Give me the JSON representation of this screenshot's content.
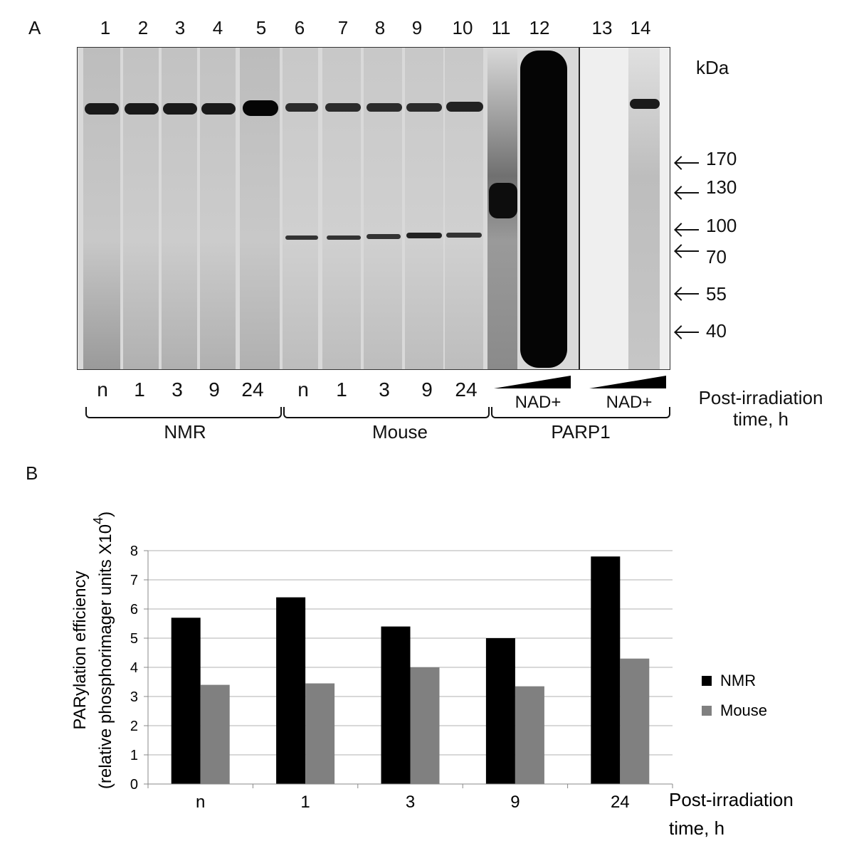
{
  "panel_a": {
    "letter": "A",
    "lane_numbers": [
      "1",
      "2",
      "3",
      "4",
      "5",
      "6",
      "7",
      "8",
      "9",
      "10",
      "11",
      "12",
      "13",
      "14"
    ],
    "unit_label": "kDa",
    "markers": [
      "170",
      "130",
      "100",
      "70",
      "55",
      "40"
    ],
    "time_labels": [
      "n",
      "1",
      "3",
      "9",
      "24",
      "n",
      "1",
      "3",
      "9",
      "24"
    ],
    "nad_labels": [
      "NAD+",
      "NAD+"
    ],
    "groups": [
      "NMR",
      "Mouse",
      "PARP1"
    ],
    "axis_caption_line1": "Post-irradiation",
    "axis_caption_line2": "time, h"
  },
  "panel_b": {
    "letter": "B"
  },
  "chart_data": {
    "type": "bar",
    "categories": [
      "n",
      "1",
      "3",
      "9",
      "24"
    ],
    "series": [
      {
        "name": "NMR",
        "values": [
          5.7,
          6.4,
          5.4,
          5.0,
          7.8
        ],
        "color": "#000000"
      },
      {
        "name": "Mouse",
        "values": [
          3.4,
          3.45,
          4.0,
          3.35,
          4.3
        ],
        "color": "#808080"
      }
    ],
    "ylabel_line1": "PARylation efficiency",
    "ylabel_line2": "(relative phosphorimager units X10",
    "ylabel_exp": "4",
    "ylabel_close": ")",
    "xlabel_line1": "Post-irradiation",
    "xlabel_line2": "time, h",
    "ylim": [
      0,
      8
    ],
    "yticks": [
      "0",
      "1",
      "2",
      "3",
      "4",
      "5",
      "6",
      "7",
      "8"
    ],
    "grid": true,
    "legend": "right"
  }
}
